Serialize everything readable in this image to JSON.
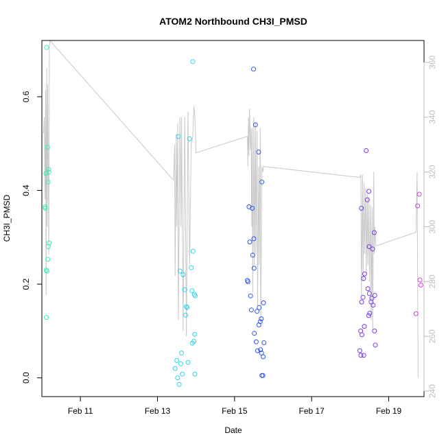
{
  "chart_data": {
    "type": "scatter",
    "title": "ATOM2 Northbound CH3I_PMSD",
    "xlabel": "Date",
    "ylabel": "CH3I_PMSD",
    "xlim": [
      "2016-02-10 00:00",
      "2016-02-19 22:00"
    ],
    "ylim": [
      -0.04,
      0.72
    ],
    "y2lim": [
      238,
      368
    ],
    "x_ticks": [
      {
        "value": "2016-02-11",
        "label": "Feb 11"
      },
      {
        "value": "2016-02-13",
        "label": "Feb 13"
      },
      {
        "value": "2016-02-15",
        "label": "Feb 15"
      },
      {
        "value": "2016-02-17",
        "label": "Feb 17"
      },
      {
        "value": "2016-02-19",
        "label": "Feb 19"
      }
    ],
    "y_ticks": [
      0.0,
      0.2,
      0.4,
      0.6
    ],
    "y_tick_labels": [
      "0.0",
      "0.2",
      "0.4",
      "0.6"
    ],
    "y2_ticks": [
      240,
      260,
      280,
      300,
      320,
      340,
      360
    ],
    "y2_tick_labels": [
      "240",
      "260",
      "280",
      "300",
      "320",
      "340",
      "360"
    ],
    "grid": false,
    "legend": "none",
    "point_colors": {
      "f1": "#33f0b0",
      "f2": "#2ad3ee",
      "f3": "#2f55ee",
      "f4": "#7a3be8",
      "f5": "#d23ee0"
    },
    "line_color": "#c8c8c8",
    "series": [
      {
        "group": "f1",
        "points": [
          [
            "2016-02-10 03:00",
            0.705
          ],
          [
            "2016-02-10 03:30",
            0.492
          ],
          [
            "2016-02-10 04:10",
            0.445
          ],
          [
            "2016-02-10 04:20",
            0.439
          ],
          [
            "2016-02-10 02:30",
            0.436
          ],
          [
            "2016-02-10 03:50",
            0.418
          ],
          [
            "2016-02-10 02:00",
            0.365
          ],
          [
            "2016-02-10 02:10",
            0.362
          ],
          [
            "2016-02-10 04:30",
            0.288
          ],
          [
            "2016-02-10 04:00",
            0.28
          ],
          [
            "2016-02-10 03:40",
            0.253
          ],
          [
            "2016-02-10 02:40",
            0.23
          ],
          [
            "2016-02-10 03:10",
            0.228
          ],
          [
            "2016-02-10 02:50",
            0.129
          ]
        ]
      },
      {
        "group": "f2",
        "points": [
          [
            "2016-02-13 22:00",
            0.675
          ],
          [
            "2016-02-13 13:00",
            0.515
          ],
          [
            "2016-02-13 20:00",
            0.51
          ],
          [
            "2016-02-13 22:10",
            0.27
          ],
          [
            "2016-02-13 21:00",
            0.235
          ],
          [
            "2016-02-13 14:00",
            0.228
          ],
          [
            "2016-02-13 16:00",
            0.22
          ],
          [
            "2016-02-13 17:00",
            0.188
          ],
          [
            "2016-02-13 21:30",
            0.186
          ],
          [
            "2016-02-13 23:00",
            0.178
          ],
          [
            "2016-02-13 23:30",
            0.175
          ],
          [
            "2016-02-13 18:00",
            0.152
          ],
          [
            "2016-02-13 18:30",
            0.15
          ],
          [
            "2016-02-13 17:30",
            0.134
          ],
          [
            "2016-02-13 23:10",
            0.093
          ],
          [
            "2016-02-13 22:40",
            0.078
          ],
          [
            "2016-02-13 21:40",
            0.074
          ],
          [
            "2016-02-13 15:00",
            0.053
          ],
          [
            "2016-02-13 12:00",
            0.037
          ],
          [
            "2016-02-13 19:00",
            0.033
          ],
          [
            "2016-02-13 14:30",
            0.03
          ],
          [
            "2016-02-13 11:00",
            0.02
          ],
          [
            "2016-02-13 15:30",
            0.008
          ],
          [
            "2016-02-13 23:20",
            0.008
          ],
          [
            "2016-02-13 12:30",
            0.0
          ],
          [
            "2016-02-13 13:30",
            -0.014
          ]
        ]
      },
      {
        "group": "f3",
        "points": [
          [
            "2016-02-15 11:50",
            0.659
          ],
          [
            "2016-02-15 13:00",
            0.54
          ],
          [
            "2016-02-15 15:00",
            0.482
          ],
          [
            "2016-02-15 17:00",
            0.418
          ],
          [
            "2016-02-15 09:00",
            0.365
          ],
          [
            "2016-02-15 11:00",
            0.362
          ],
          [
            "2016-02-15 12:00",
            0.297
          ],
          [
            "2016-02-15 09:30",
            0.29
          ],
          [
            "2016-02-15 11:20",
            0.262
          ],
          [
            "2016-02-15 12:10",
            0.234
          ],
          [
            "2016-02-15 08:00",
            0.208
          ],
          [
            "2016-02-15 08:20",
            0.205
          ],
          [
            "2016-02-15 10:00",
            0.175
          ],
          [
            "2016-02-15 18:00",
            0.16
          ],
          [
            "2016-02-15 15:20",
            0.15
          ],
          [
            "2016-02-15 10:30",
            0.145
          ],
          [
            "2016-02-15 14:00",
            0.142
          ],
          [
            "2016-02-15 16:40",
            0.126
          ],
          [
            "2016-02-15 16:00",
            0.12
          ],
          [
            "2016-02-15 15:10",
            0.113
          ],
          [
            "2016-02-15 12:20",
            0.095
          ],
          [
            "2016-02-15 13:30",
            0.077
          ],
          [
            "2016-02-15 18:20",
            0.075
          ],
          [
            "2016-02-15 16:10",
            0.06
          ],
          [
            "2016-02-15 14:20",
            0.058
          ],
          [
            "2016-02-15 16:50",
            0.053
          ],
          [
            "2016-02-15 17:50",
            0.045
          ],
          [
            "2016-02-15 17:00",
            0.005
          ],
          [
            "2016-02-15 17:40",
            0.005
          ]
        ]
      },
      {
        "group": "f4",
        "points": [
          [
            "2016-02-18 10:00",
            0.485
          ],
          [
            "2016-02-18 11:40",
            0.398
          ],
          [
            "2016-02-18 10:40",
            0.38
          ],
          [
            "2016-02-18 07:00",
            0.362
          ],
          [
            "2016-02-18 15:00",
            0.31
          ],
          [
            "2016-02-18 11:50",
            0.28
          ],
          [
            "2016-02-18 14:00",
            0.275
          ],
          [
            "2016-02-18 09:00",
            0.222
          ],
          [
            "2016-02-18 08:20",
            0.212
          ],
          [
            "2016-02-18 11:00",
            0.19
          ],
          [
            "2016-02-18 12:00",
            0.18
          ],
          [
            "2016-02-18 15:20",
            0.176
          ],
          [
            "2016-02-18 08:00",
            0.172
          ],
          [
            "2016-02-18 13:30",
            0.17
          ],
          [
            "2016-02-18 07:10",
            0.162
          ],
          [
            "2016-02-18 13:00",
            0.162
          ],
          [
            "2016-02-18 14:20",
            0.155
          ],
          [
            "2016-02-18 12:10",
            0.138
          ],
          [
            "2016-02-18 11:30",
            0.133
          ],
          [
            "2016-02-18 08:50",
            0.11
          ],
          [
            "2016-02-18 15:10",
            0.1
          ],
          [
            "2016-02-18 06:30",
            0.1
          ],
          [
            "2016-02-18 07:20",
            0.092
          ],
          [
            "2016-02-18 15:40",
            0.07
          ],
          [
            "2016-02-18 06:00",
            0.058
          ],
          [
            "2016-02-18 08:30",
            0.048
          ],
          [
            "2016-02-18 06:40",
            0.048
          ]
        ]
      },
      {
        "group": "f5",
        "points": [
          [
            "2016-02-19 19:00",
            0.392
          ],
          [
            "2016-02-19 18:00",
            0.367
          ],
          [
            "2016-02-19 19:30",
            0.209
          ],
          [
            "2016-02-19 20:00",
            0.198
          ],
          [
            "2016-02-19 17:00",
            0.137
          ]
        ]
      }
    ],
    "line_series": {
      "axis": "right",
      "points": [
        [
          "2016-02-10 01:00",
          334
        ],
        [
          "2016-02-10 01:30",
          340
        ],
        [
          "2016-02-10 02:00",
          310
        ],
        [
          "2016-02-10 02:20",
          350
        ],
        [
          "2016-02-10 02:40",
          275
        ],
        [
          "2016-02-10 03:00",
          358
        ],
        [
          "2016-02-10 03:20",
          300
        ],
        [
          "2016-02-10 03:40",
          352
        ],
        [
          "2016-02-10 04:00",
          320
        ],
        [
          "2016-02-10 04:20",
          290
        ],
        [
          "2016-02-10 04:40",
          365
        ],
        [
          "2016-02-10 05:00",
          368
        ],
        [
          "2016-02-13 10:00",
          317
        ],
        [
          "2016-02-13 10:40",
          330
        ],
        [
          "2016-02-13 11:00",
          282
        ],
        [
          "2016-02-13 11:40",
          334
        ],
        [
          "2016-02-13 12:00",
          300
        ],
        [
          "2016-02-13 12:40",
          338
        ],
        [
          "2016-02-13 13:00",
          266
        ],
        [
          "2016-02-13 14:00",
          340
        ],
        [
          "2016-02-13 14:40",
          300
        ],
        [
          "2016-02-13 15:00",
          340
        ],
        [
          "2016-02-13 16:00",
          262
        ],
        [
          "2016-02-13 17:00",
          340
        ],
        [
          "2016-02-13 18:00",
          260
        ],
        [
          "2016-02-13 19:00",
          342
        ],
        [
          "2016-02-13 20:00",
          286
        ],
        [
          "2016-02-13 21:00",
          330
        ],
        [
          "2016-02-13 22:00",
          333
        ],
        [
          "2016-02-13 22:40",
          344
        ],
        [
          "2016-02-13 23:20",
          340
        ],
        [
          "2016-02-14 00:00",
          327
        ],
        [
          "2016-02-15 08:00",
          333
        ],
        [
          "2016-02-15 08:20",
          322
        ],
        [
          "2016-02-15 08:40",
          340
        ],
        [
          "2016-02-15 09:00",
          326
        ],
        [
          "2016-02-15 09:20",
          343
        ],
        [
          "2016-02-15 10:00",
          328
        ],
        [
          "2016-02-15 10:20",
          336
        ],
        [
          "2016-02-15 10:40",
          300
        ],
        [
          "2016-02-15 11:00",
          336
        ],
        [
          "2016-02-15 11:20",
          276
        ],
        [
          "2016-02-15 12:00",
          340
        ],
        [
          "2016-02-15 12:20",
          286
        ],
        [
          "2016-02-15 13:00",
          338
        ],
        [
          "2016-02-15 13:20",
          290
        ],
        [
          "2016-02-15 14:00",
          335
        ],
        [
          "2016-02-15 14:20",
          271
        ],
        [
          "2016-02-15 15:00",
          322
        ],
        [
          "2016-02-15 15:20",
          286
        ],
        [
          "2016-02-15 16:00",
          336
        ],
        [
          "2016-02-15 16:20",
          265
        ],
        [
          "2016-02-15 17:00",
          322
        ],
        [
          "2016-02-15 17:40",
          320
        ],
        [
          "2016-02-15 18:00",
          322
        ],
        [
          "2016-02-18 06:00",
          318
        ],
        [
          "2016-02-18 06:40",
          319
        ],
        [
          "2016-02-18 07:00",
          275
        ],
        [
          "2016-02-18 07:40",
          319
        ],
        [
          "2016-02-18 08:00",
          280
        ],
        [
          "2016-02-18 08:40",
          316
        ],
        [
          "2016-02-18 09:00",
          290
        ],
        [
          "2016-02-18 09:40",
          314
        ],
        [
          "2016-02-18 10:00",
          283
        ],
        [
          "2016-02-18 10:40",
          312
        ],
        [
          "2016-02-18 11:00",
          286
        ],
        [
          "2016-02-18 11:40",
          311
        ],
        [
          "2016-02-18 12:00",
          280
        ],
        [
          "2016-02-18 12:40",
          308
        ],
        [
          "2016-02-18 13:00",
          266
        ],
        [
          "2016-02-18 13:40",
          307
        ],
        [
          "2016-02-18 14:00",
          262
        ],
        [
          "2016-02-18 14:40",
          320
        ],
        [
          "2016-02-18 15:00",
          290
        ],
        [
          "2016-02-18 15:20",
          300
        ],
        [
          "2016-02-18 16:00",
          293
        ],
        [
          "2016-02-19 17:00",
          298
        ],
        [
          "2016-02-19 17:40",
          320
        ],
        [
          "2016-02-19 18:20",
          245
        ]
      ]
    }
  }
}
